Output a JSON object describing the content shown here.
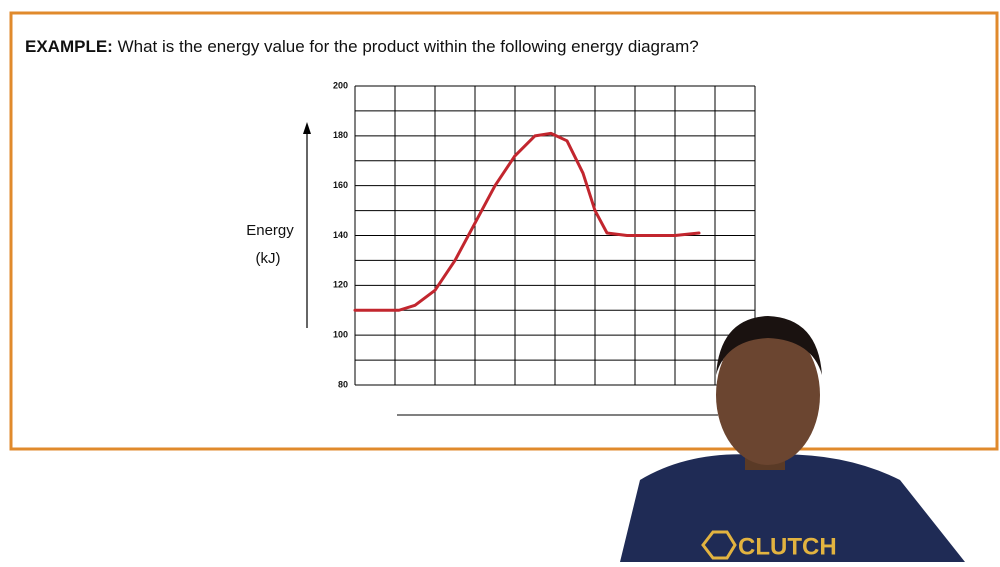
{
  "header": {
    "label": "EXAMPLE:",
    "question": "What is the energy value for the product within the following energy diagram?"
  },
  "shirt_text": "CLUTCH",
  "chart_data": {
    "type": "line",
    "ylabel": [
      "Energy",
      "(kJ)"
    ],
    "x": [
      0,
      1.1,
      1.5,
      2,
      2.5,
      3,
      3.5,
      4,
      4.5,
      4.9,
      5.3,
      5.7,
      6,
      6.3,
      6.8,
      8,
      8.6
    ],
    "series": [
      {
        "color": "#c2262e",
        "values": [
          110,
          110,
          112,
          118,
          130,
          145,
          160,
          172,
          180,
          181,
          178,
          165,
          150,
          141,
          140,
          140,
          141
        ]
      }
    ],
    "xlim": [
      0,
      10
    ],
    "xticks": [
      0,
      1,
      2,
      3,
      4,
      5,
      6,
      7,
      8,
      9,
      10
    ],
    "show_xtick_labels": false,
    "ylim": [
      80,
      200
    ],
    "yticks": [
      80,
      100,
      120,
      140,
      160,
      180,
      200
    ],
    "yminorticks": [
      90,
      110,
      130,
      150,
      170,
      190
    ],
    "grid": true
  }
}
